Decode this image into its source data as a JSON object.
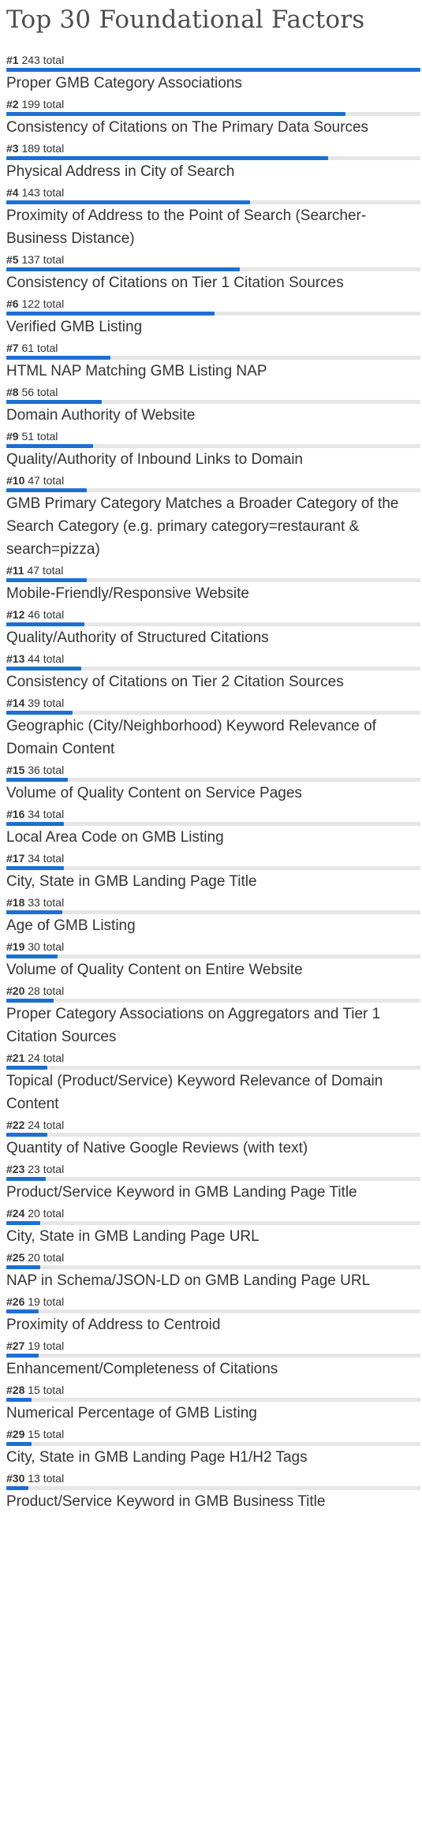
{
  "chart_data": {
    "type": "bar",
    "title": "Top 30 Foundational Factors",
    "total_suffix": "total",
    "max_value": 243,
    "bar_color": "#1e6fd2",
    "track_color": "#e6e6e6",
    "items": [
      {
        "rank": "#1",
        "value": 243,
        "label": "Proper GMB Category Associations"
      },
      {
        "rank": "#2",
        "value": 199,
        "label": "Consistency of Citations on The Primary Data Sources"
      },
      {
        "rank": "#3",
        "value": 189,
        "label": "Physical Address in City of Search"
      },
      {
        "rank": "#4",
        "value": 143,
        "label": "Proximity of Address to the Point of Search (Searcher-Business Distance)"
      },
      {
        "rank": "#5",
        "value": 137,
        "label": "Consistency of Citations on Tier 1 Citation Sources"
      },
      {
        "rank": "#6",
        "value": 122,
        "label": "Verified GMB Listing"
      },
      {
        "rank": "#7",
        "value": 61,
        "label": "HTML NAP Matching GMB Listing NAP"
      },
      {
        "rank": "#8",
        "value": 56,
        "label": "Domain Authority of Website"
      },
      {
        "rank": "#9",
        "value": 51,
        "label": "Quality/Authority of Inbound Links to Domain"
      },
      {
        "rank": "#10",
        "value": 47,
        "label": "GMB Primary Category Matches a Broader Category of the Search Category (e.g. primary category=restaurant & search=pizza)"
      },
      {
        "rank": "#11",
        "value": 47,
        "label": "Mobile-Friendly/Responsive Website"
      },
      {
        "rank": "#12",
        "value": 46,
        "label": "Quality/Authority of Structured Citations"
      },
      {
        "rank": "#13",
        "value": 44,
        "label": "Consistency of Citations on Tier 2 Citation Sources"
      },
      {
        "rank": "#14",
        "value": 39,
        "label": "Geographic (City/Neighborhood) Keyword Relevance of Domain Content"
      },
      {
        "rank": "#15",
        "value": 36,
        "label": "Volume of Quality Content on Service Pages"
      },
      {
        "rank": "#16",
        "value": 34,
        "label": "Local Area Code on GMB Listing"
      },
      {
        "rank": "#17",
        "value": 34,
        "label": "City, State in GMB Landing Page Title"
      },
      {
        "rank": "#18",
        "value": 33,
        "label": "Age of GMB Listing"
      },
      {
        "rank": "#19",
        "value": 30,
        "label": "Volume of Quality Content on Entire Website"
      },
      {
        "rank": "#20",
        "value": 28,
        "label": "Proper Category Associations on Aggregators and Tier 1 Citation Sources"
      },
      {
        "rank": "#21",
        "value": 24,
        "label": "Topical (Product/Service) Keyword Relevance of Domain Content"
      },
      {
        "rank": "#22",
        "value": 24,
        "label": "Quantity of Native Google Reviews (with text)"
      },
      {
        "rank": "#23",
        "value": 23,
        "label": "Product/Service Keyword in GMB Landing Page Title"
      },
      {
        "rank": "#24",
        "value": 20,
        "label": "City, State in GMB Landing Page URL"
      },
      {
        "rank": "#25",
        "value": 20,
        "label": "NAP in Schema/JSON-LD on GMB Landing Page URL"
      },
      {
        "rank": "#26",
        "value": 19,
        "label": "Proximity of Address to Centroid"
      },
      {
        "rank": "#27",
        "value": 19,
        "label": "Enhancement/Completeness of Citations"
      },
      {
        "rank": "#28",
        "value": 15,
        "label": "Numerical Percentage of GMB Listing"
      },
      {
        "rank": "#29",
        "value": 15,
        "label": "City, State in GMB Landing Page H1/H2 Tags"
      },
      {
        "rank": "#30",
        "value": 13,
        "label": "Product/Service Keyword in GMB Business Title"
      }
    ]
  }
}
